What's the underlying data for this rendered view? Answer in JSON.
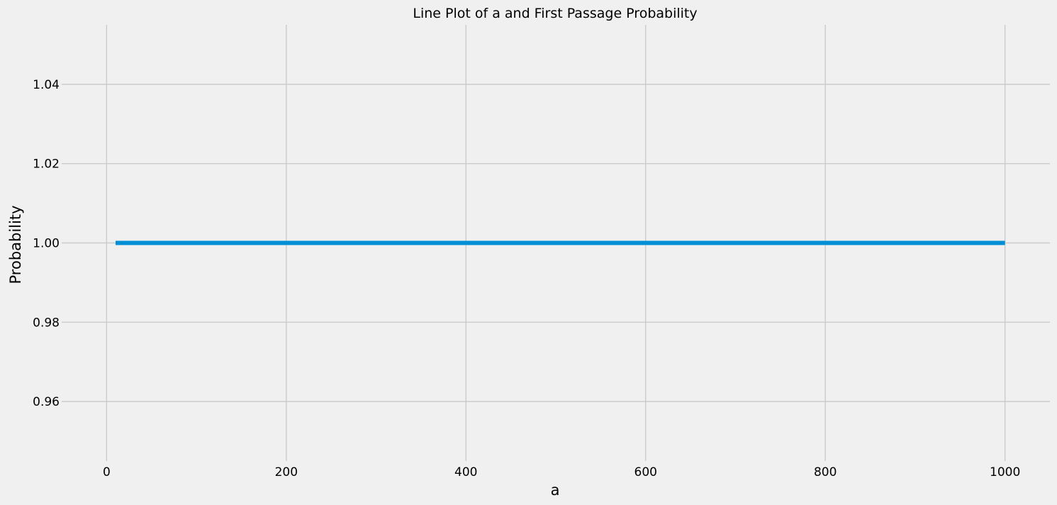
{
  "chart_data": {
    "type": "line",
    "title": "Line Plot of a and First Passage Probability",
    "xlabel": "a",
    "ylabel": "Probability",
    "xlim": [
      -50,
      1050
    ],
    "ylim": [
      0.945,
      1.055
    ],
    "xticks": [
      0,
      200,
      400,
      600,
      800,
      1000
    ],
    "xtick_labels": [
      "0",
      "200",
      "400",
      "600",
      "800",
      "1000"
    ],
    "yticks": [
      0.96,
      0.98,
      1.0,
      1.02,
      1.04
    ],
    "ytick_labels": [
      "0.96",
      "0.98",
      "1.00",
      "1.02",
      "1.04"
    ],
    "grid": true,
    "series": [
      {
        "color": "#008fd5",
        "x": [
          10,
          1000
        ],
        "y": [
          1.0,
          1.0
        ]
      }
    ]
  }
}
